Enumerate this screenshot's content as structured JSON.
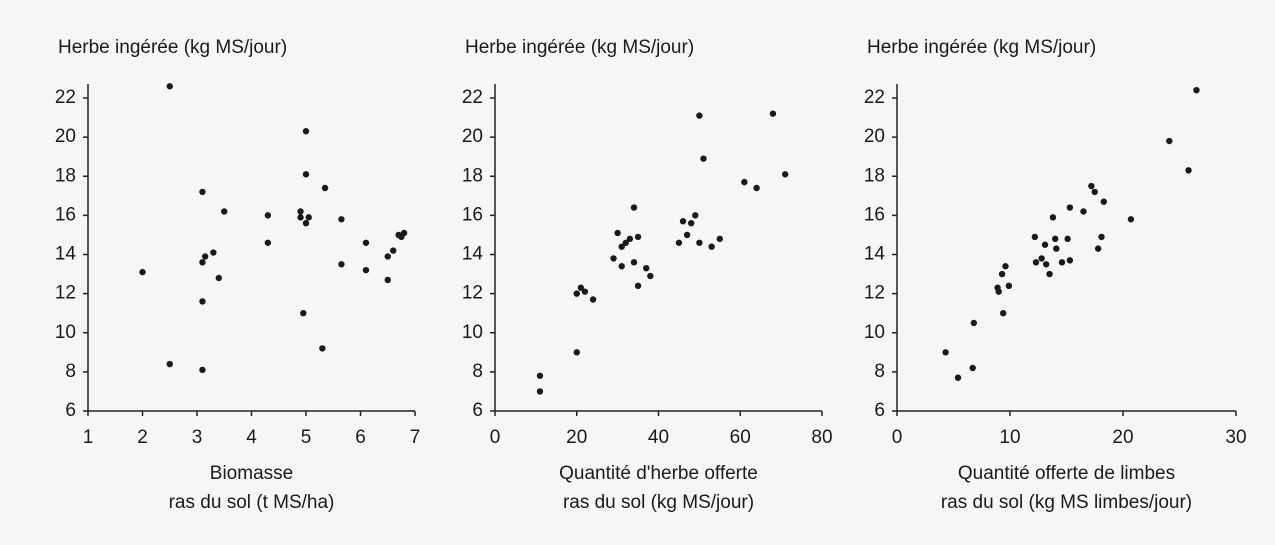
{
  "chart_data": [
    {
      "type": "scatter",
      "title": "Herbe ingérée  (kg MS/jour)",
      "xlabel": [
        "Biomasse",
        "ras du sol (t MS/ha)"
      ],
      "color": "#1a1a1a",
      "x": [
        2.0,
        2.5,
        2.5,
        3.1,
        3.1,
        3.15,
        3.3,
        3.1,
        3.1,
        3.4,
        3.5,
        4.3,
        4.3,
        4.9,
        4.9,
        5.0,
        5.0,
        5.0,
        5.05,
        4.95,
        5.35,
        5.3,
        5.65,
        5.65,
        6.1,
        6.1,
        6.5,
        6.5,
        6.6,
        6.7,
        6.8,
        6.75
      ],
      "values": [
        13.1,
        22.6,
        8.4,
        17.2,
        13.6,
        13.9,
        14.1,
        11.6,
        8.1,
        12.8,
        16.2,
        16.0,
        14.6,
        16.2,
        15.9,
        20.3,
        18.1,
        15.6,
        15.9,
        11.0,
        17.4,
        9.2,
        15.8,
        13.5,
        14.6,
        13.2,
        12.7,
        13.9,
        14.2,
        15.0,
        15.1,
        14.9
      ],
      "xlim": [
        1,
        7
      ],
      "xticks": [
        1,
        2,
        3,
        4,
        5,
        6,
        7
      ],
      "ylim": [
        6,
        22
      ],
      "yticks": [
        6,
        8,
        10,
        12,
        14,
        16,
        18,
        20,
        22
      ]
    },
    {
      "type": "scatter",
      "title": "Herbe ingérée  (kg MS/jour)",
      "xlabel": [
        "Quantité d'herbe offerte",
        "ras du sol (kg MS/jour)"
      ],
      "color": "#1a1a1a",
      "x": [
        11,
        11,
        20,
        20,
        21,
        22,
        24,
        29,
        30,
        31,
        31,
        32,
        33,
        34,
        34,
        35,
        35,
        37,
        38,
        45,
        46,
        47,
        48,
        49,
        50,
        50,
        51,
        53,
        55,
        61,
        64,
        68,
        71
      ],
      "values": [
        7.8,
        7.0,
        9.0,
        12.0,
        12.3,
        12.1,
        11.7,
        13.8,
        15.1,
        13.4,
        14.4,
        14.6,
        14.8,
        16.4,
        13.6,
        14.9,
        12.4,
        13.3,
        12.9,
        14.6,
        15.7,
        15.0,
        15.6,
        16.0,
        21.1,
        14.6,
        18.9,
        14.4,
        14.8,
        17.7,
        17.4,
        21.2,
        18.1
      ],
      "xlim": [
        0,
        80
      ],
      "xticks": [
        0,
        20,
        40,
        60,
        80
      ],
      "ylim": [
        6,
        22
      ],
      "yticks": [
        6,
        8,
        10,
        12,
        14,
        16,
        18,
        20,
        22
      ]
    },
    {
      "type": "scatter",
      "title": "Herbe ingérée  (kg MS/jour)",
      "xlabel": [
        "Quantité offerte de limbes",
        "ras du sol (kg MS limbes/jour)"
      ],
      "color": "#1a1a1a",
      "x": [
        4.3,
        5.4,
        6.7,
        6.8,
        8.9,
        9.0,
        9.3,
        9.4,
        9.6,
        9.9,
        12.2,
        12.3,
        12.8,
        13.1,
        13.2,
        13.5,
        13.8,
        14.0,
        14.1,
        14.6,
        15.1,
        15.3,
        15.3,
        16.5,
        17.2,
        17.5,
        17.8,
        18.1,
        18.3,
        20.7,
        24.1,
        25.8,
        26.5
      ],
      "values": [
        9.0,
        7.7,
        8.2,
        10.5,
        12.3,
        12.1,
        13.0,
        11.0,
        13.4,
        12.4,
        14.9,
        13.6,
        13.8,
        14.5,
        13.5,
        13.0,
        15.9,
        14.8,
        14.3,
        13.6,
        14.8,
        13.7,
        16.4,
        16.2,
        17.5,
        17.2,
        14.3,
        14.9,
        16.7,
        15.8,
        19.8,
        18.3,
        22.4
      ],
      "xlim": [
        0,
        30
      ],
      "xticks": [
        0,
        10,
        20,
        30
      ],
      "ylim": [
        6,
        22
      ],
      "yticks": [
        6,
        8,
        10,
        12,
        14,
        16,
        18,
        20,
        22
      ]
    }
  ]
}
